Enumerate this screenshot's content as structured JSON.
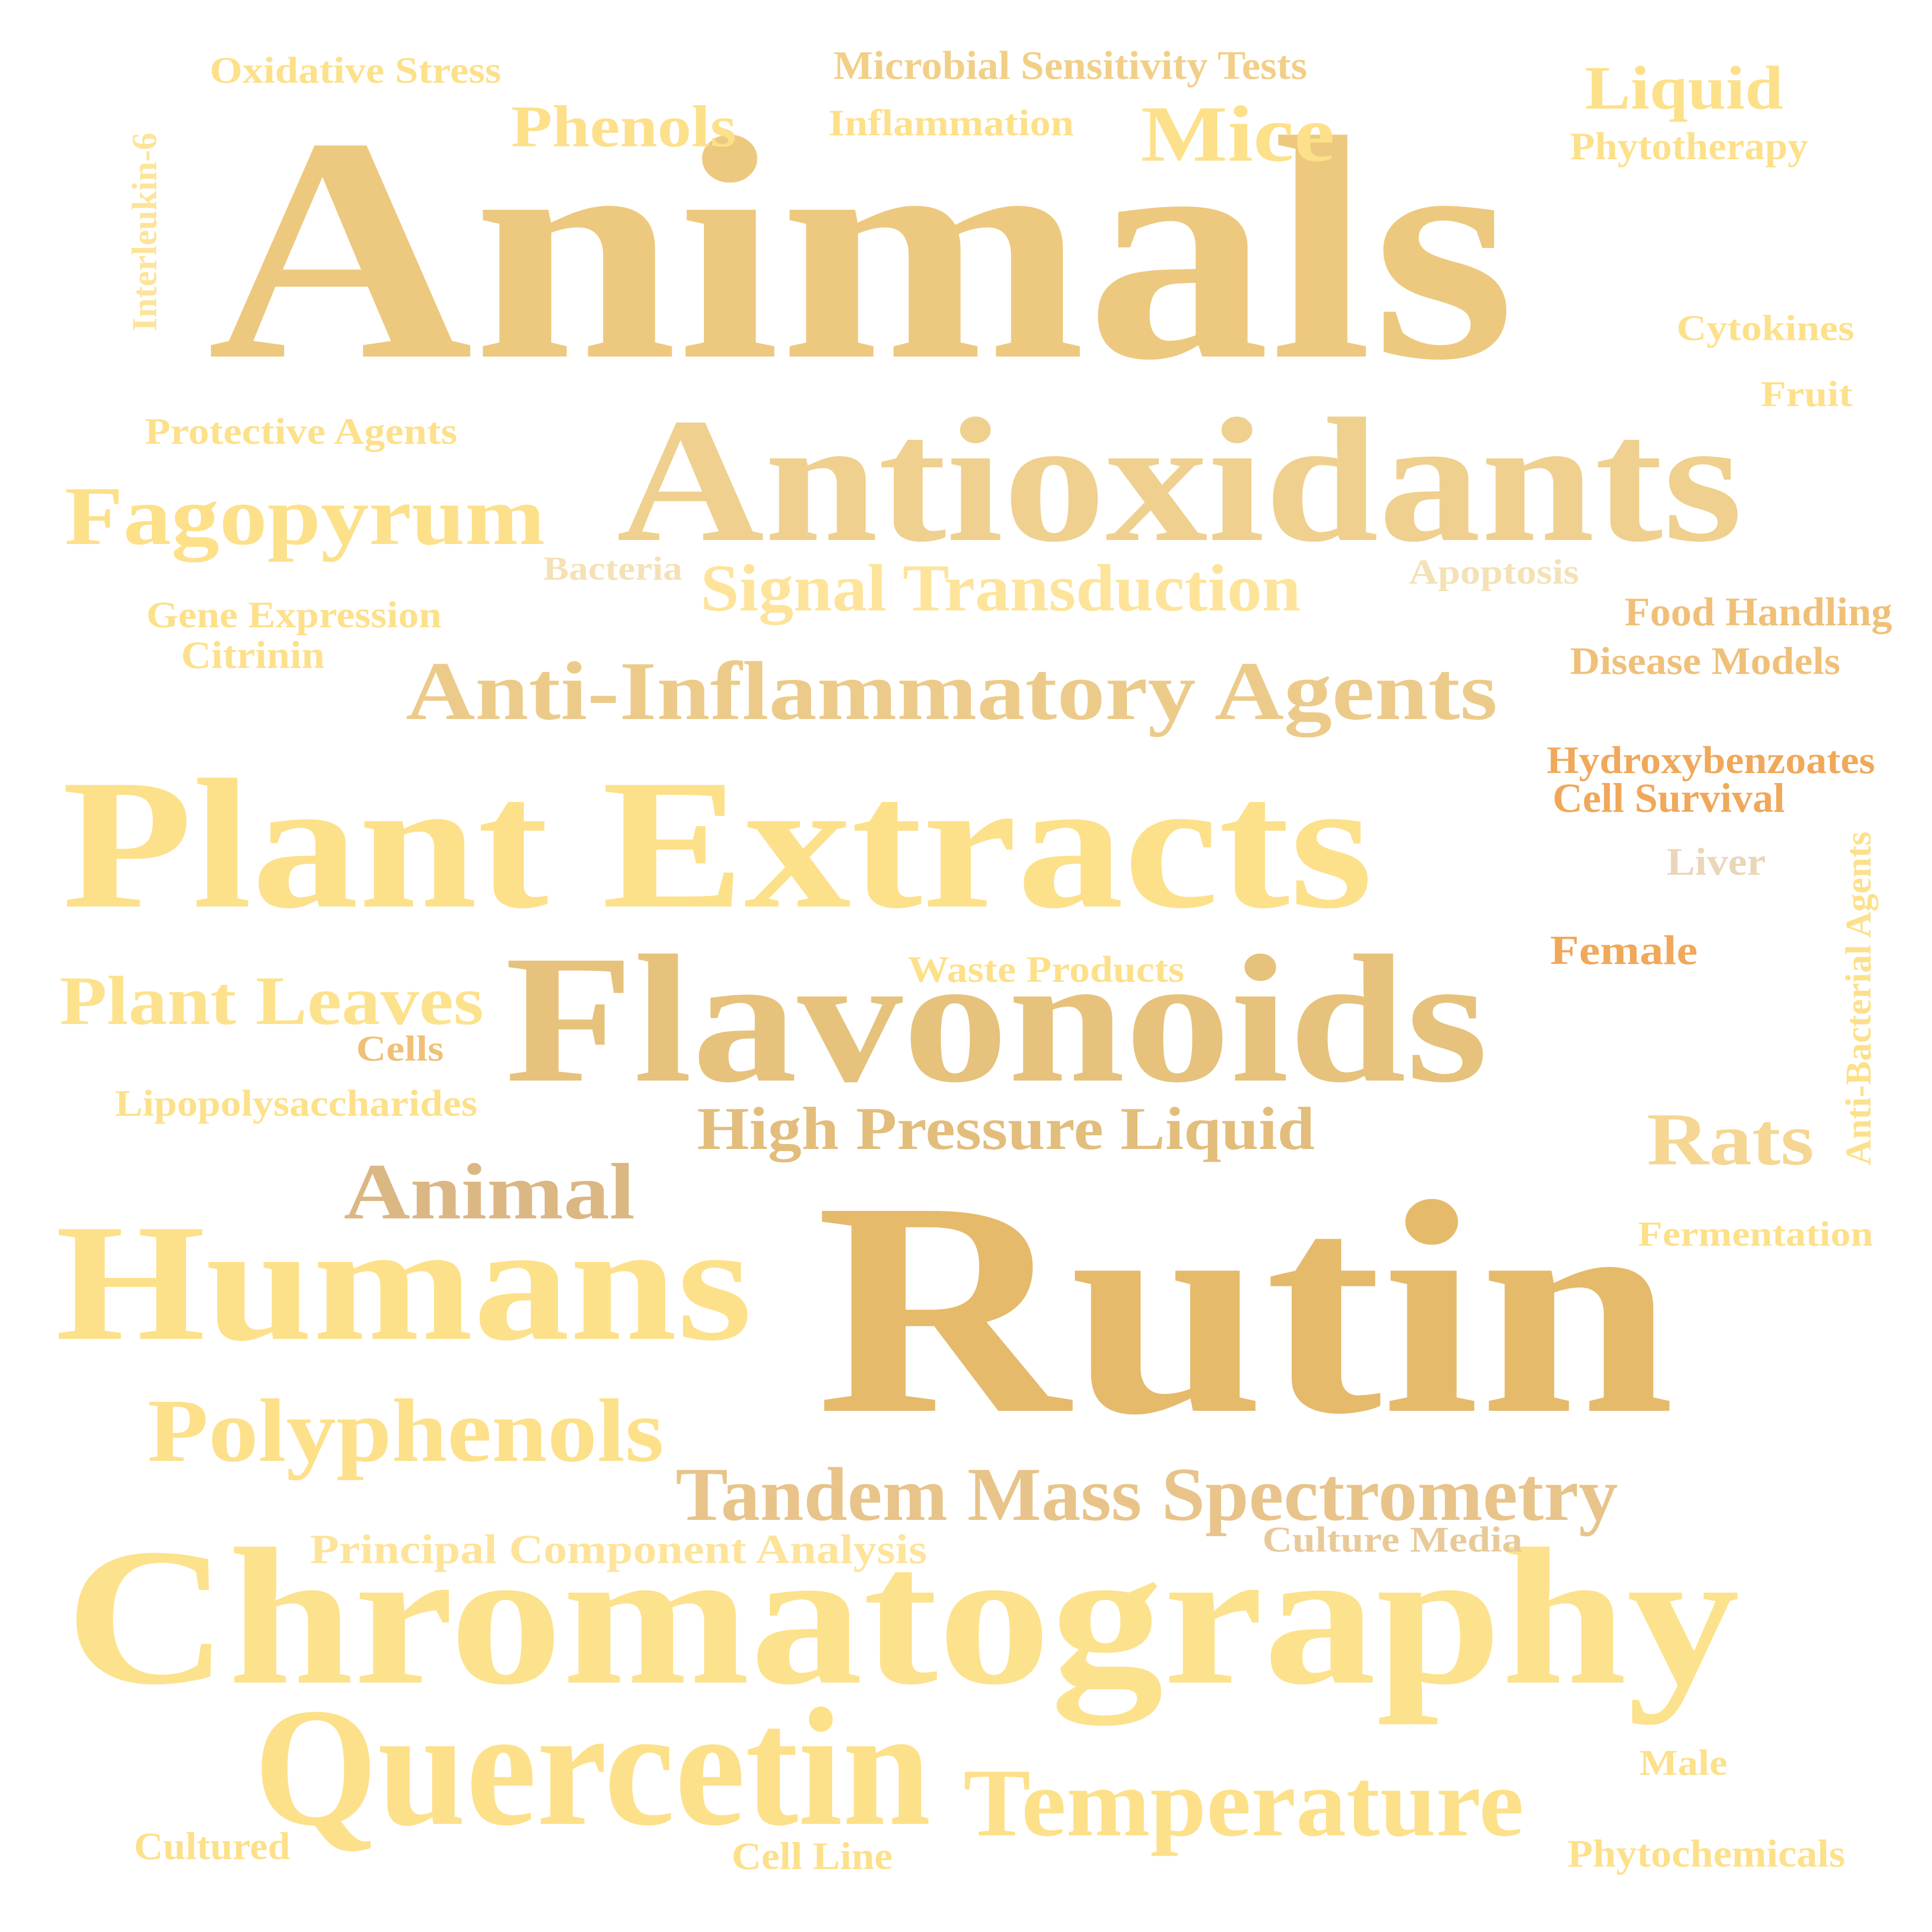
{
  "words": [
    {
      "text": "Animals",
      "color": "#edc97f"
    },
    {
      "text": "Rutin",
      "color": "#e6ba6b"
    },
    {
      "text": "Chromatography",
      "color": "#fde28d"
    },
    {
      "text": "Plant Extracts",
      "color": "#fde08a"
    },
    {
      "text": "Flavonoids",
      "color": "#e6c27c"
    },
    {
      "text": "Antioxidants",
      "color": "#efd08e"
    },
    {
      "text": "Humans",
      "color": "#fde18a"
    },
    {
      "text": "Quercetin",
      "color": "#fde08a"
    },
    {
      "text": "Temperature",
      "color": "#fde08a"
    },
    {
      "text": "Polyphenols",
      "color": "#fde08a"
    },
    {
      "text": "Anti-Inflammatory Agents",
      "color": "#eccb8a"
    },
    {
      "text": "Fagopyrum",
      "color": "#fde08a"
    },
    {
      "text": "Plant Leaves",
      "color": "#fde28d"
    },
    {
      "text": "Tandem Mass Spectrometry",
      "color": "#e8c48a"
    },
    {
      "text": "High Pressure Liquid",
      "color": "#e3bd7c"
    },
    {
      "text": "Mice",
      "color": "#fde08a"
    },
    {
      "text": "Animal",
      "color": "#dbb784"
    },
    {
      "text": "Signal Transduction",
      "color": "#fde49a"
    },
    {
      "text": "Rats",
      "color": "#f5d693"
    },
    {
      "text": "Phenols",
      "color": "#fde08a"
    },
    {
      "text": "Liquid",
      "color": "#fde08a"
    },
    {
      "text": "Principal Component Analysis",
      "color": "#fde49a"
    },
    {
      "text": "Microbial Sensitivity Tests",
      "color": "#f2cf88"
    },
    {
      "text": "Oxidative Stress",
      "color": "#fde08a"
    },
    {
      "text": "Inflammation",
      "color": "#fde08a"
    },
    {
      "text": "Phytotherapy",
      "color": "#fde08a"
    },
    {
      "text": "Interleukin-6",
      "color": "#fde49a"
    },
    {
      "text": "Cytokines",
      "color": "#fde08a"
    },
    {
      "text": "Fruit",
      "color": "#fde08a"
    },
    {
      "text": "Protective Agents",
      "color": "#fde08a"
    },
    {
      "text": "Bacteria",
      "color": "#f4e1b6"
    },
    {
      "text": "Apoptosis",
      "color": "#f4e1b6"
    },
    {
      "text": "Gene Expression",
      "color": "#fde08a"
    },
    {
      "text": "Citrinin",
      "color": "#fde08a"
    },
    {
      "text": "Food Handling",
      "color": "#f0c078"
    },
    {
      "text": "Disease Models",
      "color": "#efc07a"
    },
    {
      "text": "Hydroxybenzoates",
      "color": "#f0a85a"
    },
    {
      "text": "Cell Survival",
      "color": "#f0a85a"
    },
    {
      "text": "Liver",
      "color": "#ead6b8"
    },
    {
      "text": "Anti-Bacterial Agents",
      "color": "#fde08a"
    },
    {
      "text": "Female",
      "color": "#f0a85a"
    },
    {
      "text": "Waste Products",
      "color": "#fde08a"
    },
    {
      "text": "Cells",
      "color": "#f0c078"
    },
    {
      "text": "Lipopolysaccharides",
      "color": "#fde08a"
    },
    {
      "text": "Fermentation",
      "color": "#fde08a"
    },
    {
      "text": "Culture Media",
      "color": "#e8ca9a"
    },
    {
      "text": "Male",
      "color": "#fde08a"
    },
    {
      "text": "Cultured",
      "color": "#fde08a"
    },
    {
      "text": "Cell Line",
      "color": "#fde08a"
    },
    {
      "text": "Phytochemicals",
      "color": "#fde08a"
    }
  ]
}
